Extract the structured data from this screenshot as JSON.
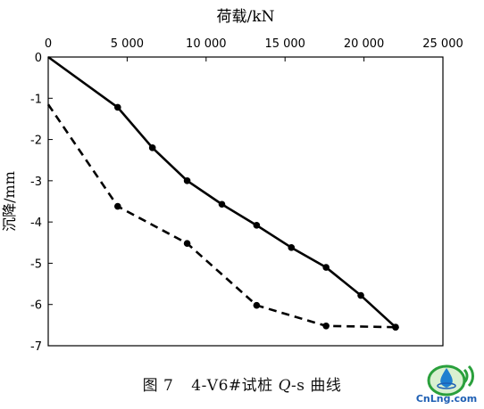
{
  "chart_data": {
    "type": "line",
    "xlabel": "荷载/kN",
    "ylabel": "沉降/mm",
    "xlim": [
      0,
      25000
    ],
    "ylim": [
      -7,
      0
    ],
    "x_ticks": [
      0,
      5000,
      10000,
      15000,
      20000,
      25000
    ],
    "x_tick_labels": [
      "0",
      "5 000",
      "10 000",
      "15 000",
      "20 000",
      "25 000"
    ],
    "y_ticks": [
      0,
      -1,
      -2,
      -3,
      -4,
      -5,
      -6,
      -7
    ],
    "y_tick_labels": [
      "0",
      "-1",
      "-2",
      "-3",
      "-4",
      "-5",
      "-6",
      "-7"
    ],
    "x_axis_position": "top",
    "grid": false,
    "series": [
      {
        "style": "solid",
        "color": "#000000",
        "x": [
          0,
          4400,
          6600,
          8800,
          11000,
          13200,
          15400,
          17600,
          19800,
          22000
        ],
        "y": [
          0,
          -1.22,
          -2.2,
          -3.0,
          -3.57,
          -4.08,
          -4.62,
          -5.1,
          -5.78,
          -6.55
        ]
      },
      {
        "style": "dashed",
        "color": "#000000",
        "x": [
          0,
          4400,
          8800,
          13200,
          17600,
          22000
        ],
        "y": [
          -1.15,
          -3.62,
          -4.52,
          -6.02,
          -6.52,
          -6.55
        ]
      }
    ]
  },
  "caption": {
    "figure_no": "图 7",
    "text_before": "4-V6#试桩 ",
    "q": "Q",
    "text_after": "-s 曲线"
  },
  "logo": {
    "text": "CnLng.com"
  }
}
